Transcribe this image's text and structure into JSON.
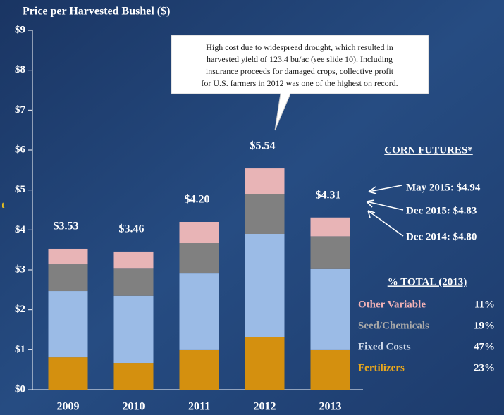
{
  "chart_data": {
    "type": "stacked_bar",
    "title": "Price per Harvested Bushel ($)",
    "categories": [
      "2009",
      "2010",
      "2011",
      "2012",
      "2013"
    ],
    "series": [
      {
        "name": "Fertilizers",
        "color": "#d4900f",
        "label_color": "#eaa81c",
        "values": [
          0.81,
          0.67,
          0.99,
          1.31,
          0.99
        ]
      },
      {
        "name": "Fixed Costs",
        "color": "#9bbbe6",
        "label_color": "#d2dcec",
        "values": [
          1.66,
          1.68,
          1.92,
          2.59,
          2.03
        ]
      },
      {
        "name": "Seed/Chemicals",
        "color": "#808080",
        "label_color": "#a8a8a8",
        "values": [
          0.67,
          0.68,
          0.76,
          1.0,
          0.82
        ]
      },
      {
        "name": "Other Variable",
        "color": "#e8b4b6",
        "label_color": "#f2b2b6",
        "values": [
          0.39,
          0.43,
          0.53,
          0.64,
          0.47
        ]
      }
    ],
    "totals": [
      3.53,
      3.46,
      4.2,
      5.54,
      4.31
    ],
    "value_labels": [
      "$3.53",
      "$3.46",
      "$4.20",
      "$5.54",
      "$4.31"
    ],
    "ylim": [
      0,
      9
    ],
    "yticks": [
      {
        "value": 0,
        "label": "$0"
      },
      {
        "value": 1,
        "label": "$1"
      },
      {
        "value": 2,
        "label": "$2"
      },
      {
        "value": 3,
        "label": "$3"
      },
      {
        "value": 4,
        "label": "$4"
      },
      {
        "value": 5,
        "label": "$5"
      },
      {
        "value": 6,
        "label": "$6"
      },
      {
        "value": 7,
        "label": "$7"
      },
      {
        "value": 8,
        "label": "$8"
      },
      {
        "value": 9,
        "label": "$9"
      }
    ],
    "annotation": [
      "High cost due to widespread drought, which resulted in",
      "harvested yield of 123.4 bu/ac (see slide 10).  Including",
      "insurance proceeds for damaged crops, collective profit",
      "for U.S. farmers in 2012 was one of the highest on record."
    ],
    "corn_futures": {
      "title": "CORN FUTURES*",
      "items": [
        "May 2015: $4.94",
        "Dec 2015: $4.83",
        "Dec 2014: $4.80"
      ]
    },
    "percent_total": {
      "title": "% TOTAL (2013)",
      "shares": [
        23,
        47,
        19,
        11
      ],
      "share_labels": [
        "23%",
        "47%",
        "19%",
        "11%"
      ]
    },
    "edge_text": "t"
  }
}
